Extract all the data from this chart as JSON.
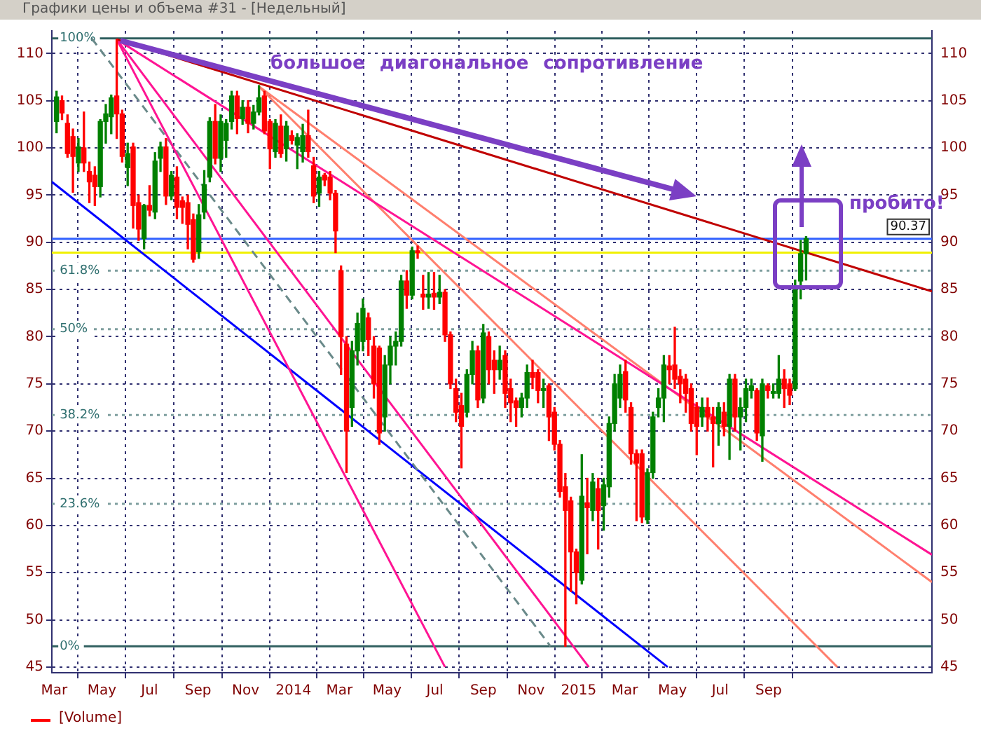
{
  "chart_data": {
    "type": "candlestick",
    "title": "Графики цены и объема #31 - [Недельный]",
    "x": [
      "2013-03-04",
      "2013-03-11",
      "2013-03-18",
      "2013-03-25",
      "2013-04-01",
      "2013-04-08",
      "2013-04-15",
      "2013-04-22",
      "2013-04-29",
      "2013-05-06",
      "2013-05-13",
      "2013-05-20",
      "2013-05-27",
      "2013-06-03",
      "2013-06-10",
      "2013-06-17",
      "2013-06-24",
      "2013-07-01",
      "2013-07-08",
      "2013-07-15",
      "2013-07-22",
      "2013-07-29",
      "2013-08-05",
      "2013-08-12",
      "2013-08-19",
      "2013-08-26",
      "2013-09-02",
      "2013-09-09",
      "2013-09-16",
      "2013-09-23",
      "2013-09-30",
      "2013-10-07",
      "2013-10-14",
      "2013-10-21",
      "2013-10-28",
      "2013-11-04",
      "2013-11-11",
      "2013-11-18",
      "2013-11-25",
      "2013-12-02",
      "2013-12-09",
      "2013-12-16",
      "2013-12-23",
      "2013-12-30",
      "2014-01-06",
      "2014-01-13",
      "2014-01-20",
      "2014-01-27",
      "2014-02-03",
      "2014-02-10",
      "2014-02-17",
      "2014-02-24",
      "2014-03-03",
      "2014-03-10",
      "2014-03-17",
      "2014-03-24",
      "2014-03-31",
      "2014-04-07",
      "2014-04-14",
      "2014-04-21",
      "2014-04-28",
      "2014-05-05",
      "2014-05-12",
      "2014-05-19",
      "2014-05-26",
      "2014-06-02",
      "2014-06-09",
      "2014-06-16",
      "2014-06-23",
      "2014-06-30",
      "2014-07-07",
      "2014-07-14",
      "2014-07-21",
      "2014-07-28",
      "2014-08-04",
      "2014-08-11",
      "2014-08-18",
      "2014-08-25",
      "2014-09-01",
      "2014-09-08",
      "2014-09-15",
      "2014-09-22",
      "2014-09-29",
      "2014-10-06",
      "2014-10-13",
      "2014-10-20",
      "2014-10-27",
      "2014-11-03",
      "2014-11-10",
      "2014-11-17",
      "2014-11-24",
      "2014-12-01",
      "2014-12-08",
      "2014-12-15",
      "2014-12-22",
      "2014-12-29",
      "2015-01-05",
      "2015-01-12",
      "2015-01-19",
      "2015-01-26",
      "2015-02-02",
      "2015-02-09",
      "2015-02-16",
      "2015-02-23",
      "2015-03-02",
      "2015-03-09",
      "2015-03-16",
      "2015-03-23",
      "2015-03-30",
      "2015-04-06",
      "2015-04-13",
      "2015-04-20",
      "2015-04-27",
      "2015-05-04",
      "2015-05-11",
      "2015-05-18",
      "2015-05-25",
      "2015-06-01",
      "2015-06-08",
      "2015-06-15",
      "2015-06-22",
      "2015-06-29",
      "2015-07-06",
      "2015-07-13",
      "2015-07-20",
      "2015-07-27",
      "2015-08-03",
      "2015-08-10",
      "2015-08-17",
      "2015-08-24",
      "2015-08-31",
      "2015-09-07",
      "2015-09-14",
      "2015-09-21",
      "2015-09-28",
      "2015-10-05",
      "2015-10-12",
      "2015-10-19"
    ],
    "ohlc": [
      [
        102.8,
        106,
        101.6,
        105.4
      ],
      [
        105,
        105.5,
        103,
        103.7
      ],
      [
        102.6,
        103.5,
        99,
        99.4
      ],
      [
        101.2,
        102,
        95.3,
        99.1
      ],
      [
        98.4,
        101,
        97.5,
        100.1
      ],
      [
        100,
        103.8,
        97.5,
        98.4
      ],
      [
        97.5,
        98.5,
        94.2,
        96.4
      ],
      [
        97.1,
        98,
        93.9,
        95.9
      ],
      [
        95.9,
        103,
        94.8,
        102.8
      ],
      [
        102.8,
        104.6,
        100.5,
        103.6
      ],
      [
        103.3,
        105.6,
        101.5,
        105.3
      ],
      [
        105.5,
        111.5,
        101,
        103.6
      ],
      [
        103.6,
        104,
        98.5,
        99.1
      ],
      [
        97.9,
        100.5,
        96,
        99.4
      ],
      [
        100.1,
        100.5,
        91.5,
        93.9
      ],
      [
        94.2,
        95,
        90.2,
        91.4
      ],
      [
        90.4,
        94,
        89.3,
        93.9
      ],
      [
        93.9,
        96,
        92.8,
        93.4
      ],
      [
        93.2,
        99.5,
        92.5,
        98.6
      ],
      [
        98.9,
        100.6,
        97.5,
        100.1
      ],
      [
        100.1,
        101,
        94,
        94.9
      ],
      [
        94.9,
        97.5,
        94.5,
        97.1
      ],
      [
        96.9,
        98,
        92.5,
        93.7
      ],
      [
        94.4,
        94.8,
        92,
        93.7
      ],
      [
        94.2,
        95,
        89.3,
        91.9
      ],
      [
        92.4,
        93,
        87.9,
        88.2
      ],
      [
        89,
        94,
        88.3,
        92.9
      ],
      [
        93.2,
        97.6,
        92.5,
        96.1
      ],
      [
        96.9,
        103.2,
        96.4,
        102.8
      ],
      [
        102.8,
        104.6,
        98.3,
        98.9
      ],
      [
        98.9,
        103.5,
        97.5,
        102.8
      ],
      [
        100.8,
        103,
        99,
        102.6
      ],
      [
        102.8,
        106,
        102,
        105.5
      ],
      [
        105.5,
        106,
        101.5,
        103.1
      ],
      [
        103.1,
        105,
        102.5,
        104.3
      ],
      [
        104.3,
        105,
        101.6,
        102.6
      ],
      [
        102.6,
        104.5,
        102,
        103.8
      ],
      [
        103.8,
        106.6,
        103.5,
        105.3
      ],
      [
        105.5,
        106,
        101.5,
        101.8
      ],
      [
        102.8,
        103,
        97.8,
        99.9
      ],
      [
        99.6,
        103,
        99,
        102.6
      ],
      [
        102.3,
        103.5,
        99,
        99.4
      ],
      [
        99.9,
        102.8,
        98.6,
        102.3
      ],
      [
        101.3,
        101.8,
        100.4,
        100.8
      ],
      [
        100.3,
        101.5,
        97.8,
        101.1
      ],
      [
        99.6,
        102.5,
        98.5,
        101.3
      ],
      [
        101.3,
        104,
        99,
        99.6
      ],
      [
        98.1,
        99,
        94.2,
        94.9
      ],
      [
        95.2,
        97.5,
        93.8,
        96.9
      ],
      [
        97.1,
        97.3,
        96,
        96.6
      ],
      [
        96.9,
        97.5,
        94.5,
        95.2
      ],
      [
        95.2,
        95.5,
        88.9,
        91.2
      ],
      [
        87,
        87.5,
        76,
        80
      ],
      [
        79.2,
        80,
        65.6,
        70
      ],
      [
        72.5,
        79.5,
        70.5,
        78.5
      ],
      [
        78.5,
        82.5,
        77,
        81.4
      ],
      [
        79.5,
        84,
        78.5,
        83
      ],
      [
        82,
        82.5,
        78,
        79.7
      ],
      [
        79,
        80,
        73.5,
        75
      ],
      [
        78.8,
        79,
        68.6,
        69.8
      ],
      [
        71.5,
        78,
        70,
        77
      ],
      [
        77,
        80,
        75,
        79
      ],
      [
        79,
        80.5,
        77,
        79.5
      ],
      [
        79.5,
        86.5,
        79,
        85.9
      ],
      [
        85.9,
        87,
        83,
        84.4
      ],
      [
        84.4,
        89.5,
        84,
        89.1
      ],
      [
        89.1,
        89.6,
        88.3,
        88.9
      ],
      [
        84.5,
        86.5,
        82.9,
        84.2
      ],
      [
        84.2,
        86.8,
        83,
        84.5
      ],
      [
        84.6,
        86.8,
        82.9,
        84.2
      ],
      [
        84.2,
        86.5,
        83.5,
        84.7
      ],
      [
        84.7,
        85,
        79.5,
        80.2
      ],
      [
        80.2,
        80.5,
        74.5,
        75
      ],
      [
        74.5,
        75.5,
        71,
        72
      ],
      [
        72.7,
        74,
        66.1,
        70.5
      ],
      [
        72,
        76.5,
        71.5,
        76
      ],
      [
        76,
        79.5,
        75,
        78.5
      ],
      [
        78.5,
        79,
        72.5,
        73.3
      ],
      [
        73.5,
        81.3,
        73,
        80.4
      ],
      [
        80,
        80.5,
        75,
        76.5
      ],
      [
        77.5,
        78.5,
        74,
        76.5
      ],
      [
        76.5,
        79,
        75.5,
        77.5
      ],
      [
        78,
        78.5,
        72.5,
        74
      ],
      [
        74.5,
        75.5,
        71,
        73
      ],
      [
        73.2,
        73.5,
        70.5,
        72.5
      ],
      [
        72.5,
        74,
        71.5,
        73.5
      ],
      [
        73.5,
        77,
        72.5,
        76.2
      ],
      [
        76.2,
        77.5,
        74.5,
        75.7
      ],
      [
        76.2,
        76.5,
        73,
        74.3
      ],
      [
        74.3,
        75.5,
        72.5,
        74.5
      ],
      [
        74.8,
        75,
        69,
        71.5
      ],
      [
        72,
        72.5,
        68,
        68.6
      ],
      [
        68.6,
        69,
        63,
        63.6
      ],
      [
        64.1,
        65.5,
        47.2,
        61.6
      ],
      [
        62.6,
        63,
        53,
        57.2
      ],
      [
        57.2,
        57.5,
        51.7,
        55
      ],
      [
        54.2,
        67.5,
        53.8,
        63.1
      ],
      [
        62.4,
        65,
        57,
        61.9
      ],
      [
        61.6,
        65.5,
        60.5,
        64.6
      ],
      [
        63.9,
        65,
        57.5,
        61.6
      ],
      [
        62.1,
        65,
        59.5,
        64.3
      ],
      [
        64.1,
        71.5,
        63,
        70.8
      ],
      [
        70.8,
        76,
        70,
        75
      ],
      [
        73.5,
        77,
        72.5,
        76
      ],
      [
        76.3,
        77.5,
        72,
        73.3
      ],
      [
        72.5,
        73,
        66.5,
        67.6
      ],
      [
        67.6,
        68,
        60.5,
        66.6
      ],
      [
        67.6,
        68,
        60.3,
        60.9
      ],
      [
        60.6,
        66,
        60.2,
        65.6
      ],
      [
        65.6,
        72,
        65,
        71.5
      ],
      [
        72.5,
        74.5,
        71.5,
        73.5
      ],
      [
        73.5,
        78,
        71,
        77
      ],
      [
        76.9,
        78,
        75,
        76.5
      ],
      [
        77,
        81,
        74.5,
        75.5
      ],
      [
        75.8,
        76.5,
        73,
        75
      ],
      [
        75.5,
        76,
        72,
        74
      ],
      [
        74.5,
        75,
        70,
        70.8
      ],
      [
        72.5,
        73,
        67.5,
        70.5
      ],
      [
        71.5,
        73.5,
        70.5,
        72.5
      ],
      [
        72.5,
        73.5,
        70,
        71.5
      ],
      [
        71.5,
        72.5,
        66.2,
        70.8
      ],
      [
        70.8,
        73,
        68.5,
        72.5
      ],
      [
        72,
        73,
        69.5,
        70.5
      ],
      [
        70.5,
        76,
        67,
        75.5
      ],
      [
        75.5,
        76,
        70,
        71.5
      ],
      [
        71.5,
        73.5,
        68,
        72.5
      ],
      [
        72.5,
        75.5,
        71,
        74.5
      ],
      [
        74.3,
        75.5,
        73.5,
        74.8
      ],
      [
        74.3,
        74.5,
        69,
        69.8
      ],
      [
        69.5,
        75.5,
        66.8,
        75
      ],
      [
        74.8,
        75,
        73.5,
        74.3
      ],
      [
        74,
        75,
        73.5,
        74.2
      ],
      [
        74,
        78,
        73.5,
        75.5
      ],
      [
        75.5,
        76.5,
        72.5,
        74.5
      ],
      [
        75,
        75.5,
        72.8,
        73.8
      ],
      [
        74.5,
        86,
        74.3,
        85.4
      ],
      [
        85.9,
        90.2,
        84,
        88.8
      ],
      [
        88.8,
        90.6,
        86,
        90.37
      ]
    ],
    "series": [
      {
        "type": "line",
        "x": [
          "2013-05-20",
          "2016-03-28"
        ],
        "values": [
          111.5,
          84.8
        ],
        "color": "#c00000"
      },
      {
        "type": "line",
        "x": [
          "2013-05-20",
          "2016-03-28"
        ],
        "values": [
          111.5,
          56.9
        ],
        "color": "#ff1493"
      },
      {
        "type": "line",
        "x": [
          "2013-05-20",
          "2015-01-14"
        ],
        "values": [
          111.5,
          45
        ],
        "color": "#ff1493"
      },
      {
        "type": "line",
        "x": [
          "2013-05-20",
          "2014-07-14"
        ],
        "values": [
          111.5,
          45
        ],
        "color": "#ff1493"
      },
      {
        "type": "line",
        "x": [
          "2013-11-18",
          "2016-03-28"
        ],
        "values": [
          106.5,
          54
        ],
        "color": "#ff7f6e"
      },
      {
        "type": "line",
        "x": [
          "2013-11-18",
          "2015-11-28"
        ],
        "values": [
          106.5,
          45
        ],
        "color": "#ff7f6e"
      },
      {
        "type": "line",
        "x": [
          "2013-04-18",
          "2014-11-26"
        ],
        "values": [
          111.6,
          47.2
        ],
        "color": "#6a8a8a",
        "line_style": "dashed"
      },
      {
        "type": "line",
        "x": [
          "2013-02-26",
          "2015-04-25"
        ],
        "values": [
          96.4,
          45
        ],
        "color": "#0000ff"
      }
    ],
    "xlim": [
      "2013-02-26",
      "2016-03-28"
    ],
    "xticks": [
      {
        "value": "2013-03",
        "label": "Mar"
      },
      {
        "value": "2013-05",
        "label": "May"
      },
      {
        "value": "2013-07",
        "label": "Jul"
      },
      {
        "value": "2013-09",
        "label": "Sep"
      },
      {
        "value": "2013-11",
        "label": "Nov"
      },
      {
        "value": "2014-01",
        "label": "2014"
      },
      {
        "value": "2014-03",
        "label": "Mar"
      },
      {
        "value": "2014-05",
        "label": "May"
      },
      {
        "value": "2014-07",
        "label": "Jul"
      },
      {
        "value": "2014-09",
        "label": "Sep"
      },
      {
        "value": "2014-11",
        "label": "Nov"
      },
      {
        "value": "2015-01",
        "label": "2015"
      },
      {
        "value": "2015-03",
        "label": "Mar"
      },
      {
        "value": "2015-05",
        "label": "May"
      },
      {
        "value": "2015-07",
        "label": "Jul"
      },
      {
        "value": "2015-09",
        "label": "Sep"
      }
    ],
    "ylim": [
      44.4,
      112.4
    ],
    "yticks": [
      45,
      50,
      55,
      60,
      65,
      70,
      75,
      80,
      85,
      90,
      95,
      100,
      105,
      110
    ],
    "y2lim": [
      44.4,
      112.4
    ],
    "y2ticks": [
      45,
      50,
      55,
      60,
      65,
      70,
      75,
      80,
      85,
      90,
      95,
      100,
      105,
      110
    ],
    "grid": true,
    "ref_lines": [
      {
        "axis": "y",
        "value": 111.6,
        "color": "#2f5f5f"
      },
      {
        "axis": "y",
        "value": 87,
        "color": "#7f9f9f",
        "line_style": "dotted"
      },
      {
        "axis": "y",
        "value": 80.8,
        "color": "#7f9f9f",
        "line_style": "dotted"
      },
      {
        "axis": "y",
        "value": 71.7,
        "color": "#7f9f9f",
        "line_style": "dotted"
      },
      {
        "axis": "y",
        "value": 62.3,
        "color": "#7f9f9f",
        "line_style": "dotted"
      },
      {
        "axis": "y",
        "value": 47.2,
        "color": "#2f5f5f"
      },
      {
        "axis": "y2",
        "value": 90.37,
        "label": "90.37",
        "color": "#3060ff"
      },
      {
        "axis": "y",
        "value": 88.9,
        "color": "#f0f000"
      }
    ],
    "annotations": [
      "большое диагональное сопротивление",
      "пробито!",
      "[Volume]",
      {
        "text": "100%",
        "x": "2013-03-08",
        "y": 111.6
      },
      {
        "text": "61.8%",
        "x": "2013-03-08",
        "y": 87
      },
      {
        "text": "50%",
        "x": "2013-03-08",
        "y": 80.8
      },
      {
        "text": "38.2%",
        "x": "2013-03-08",
        "y": 71.7
      },
      {
        "text": "23.6%",
        "x": "2013-03-08",
        "y": 62.3
      },
      {
        "text": "0%",
        "x": "2013-03-08",
        "y": 47.2
      }
    ]
  }
}
